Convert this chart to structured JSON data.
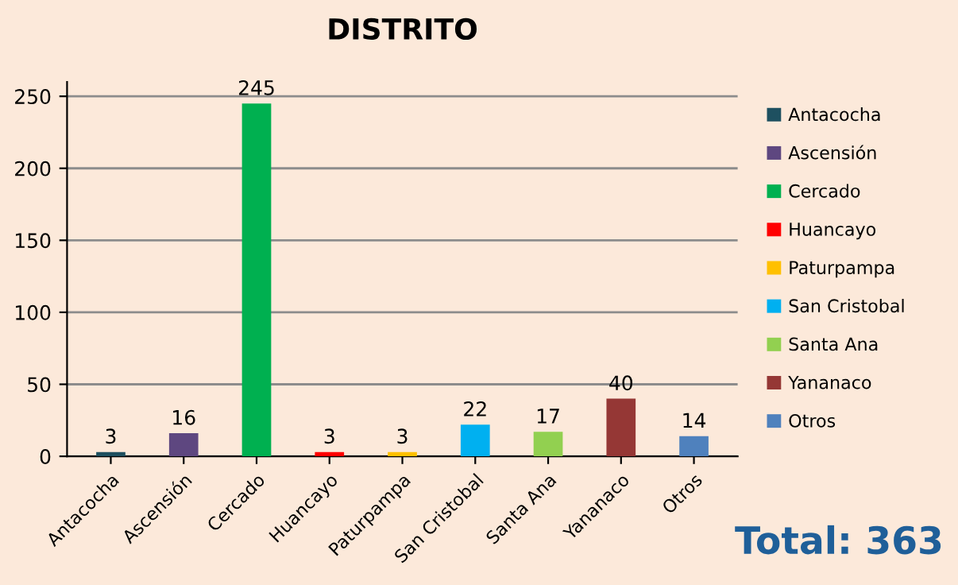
{
  "chart_data": {
    "type": "bar",
    "title": "DISTRITO",
    "categories": [
      "Antacocha",
      "Ascensión",
      "Cercado",
      "Huancayo",
      "Paturpampa",
      "San Cristobal",
      "Santa Ana",
      "Yananaco",
      "Otros"
    ],
    "series": [
      {
        "name": "Antacocha",
        "color": "#1e5060",
        "values": [
          3,
          null,
          null,
          null,
          null,
          null,
          null,
          null,
          null
        ]
      },
      {
        "name": "Ascensión",
        "color": "#5e4780",
        "values": [
          null,
          16,
          null,
          null,
          null,
          null,
          null,
          null,
          null
        ]
      },
      {
        "name": "Cercado",
        "color": "#00b050",
        "values": [
          null,
          null,
          245,
          null,
          null,
          null,
          null,
          null,
          null
        ]
      },
      {
        "name": "Huancayo",
        "color": "#ff0000",
        "values": [
          null,
          null,
          null,
          3,
          null,
          null,
          null,
          null,
          null
        ]
      },
      {
        "name": "Paturpampa",
        "color": "#ffc000",
        "values": [
          null,
          null,
          null,
          null,
          3,
          null,
          null,
          null,
          null
        ]
      },
      {
        "name": "San Cristobal",
        "color": "#00b0f0",
        "values": [
          null,
          null,
          null,
          null,
          null,
          22,
          null,
          null,
          null
        ]
      },
      {
        "name": "Santa Ana",
        "color": "#92d050",
        "values": [
          null,
          null,
          null,
          null,
          null,
          null,
          17,
          null,
          null
        ]
      },
      {
        "name": "Yananaco",
        "color": "#953735",
        "values": [
          null,
          null,
          null,
          null,
          null,
          null,
          null,
          40,
          null
        ]
      },
      {
        "name": "Otros",
        "color": "#4f81bd",
        "values": [
          null,
          null,
          null,
          null,
          null,
          null,
          null,
          null,
          14
        ]
      }
    ],
    "ylim": [
      0,
      260
    ],
    "yticks": [
      0,
      50,
      100,
      150,
      200,
      250
    ],
    "grid": "y",
    "legend": "right",
    "data_labels": true,
    "annotations": [
      "Total: 363"
    ]
  }
}
